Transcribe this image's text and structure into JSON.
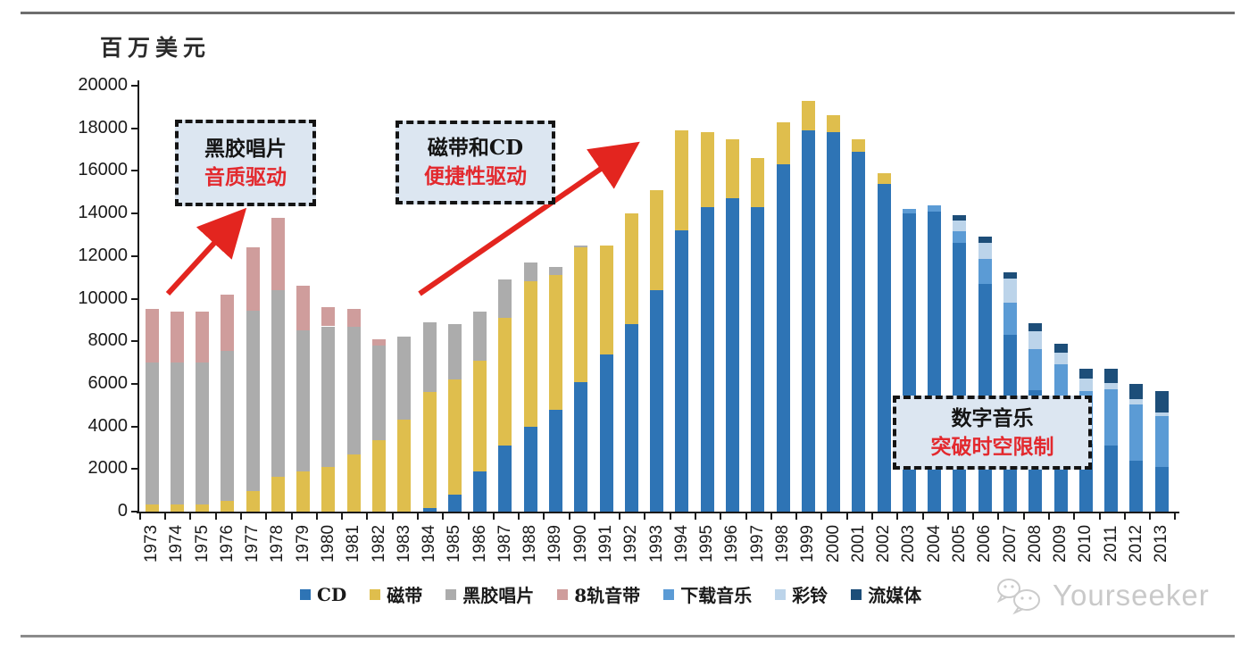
{
  "page": {
    "unit_label": "百万美元",
    "watermark": "Yourseeker"
  },
  "chart_data": {
    "type": "bar",
    "stacked": true,
    "title": "",
    "xlabel": "",
    "ylabel": "百万美元",
    "ylim": [
      0,
      20000
    ],
    "ytick_step": 2000,
    "grid": false,
    "legend_position": "bottom",
    "categories": [
      1973,
      1974,
      1975,
      1976,
      1977,
      1978,
      1979,
      1980,
      1981,
      1982,
      1983,
      1984,
      1985,
      1986,
      1987,
      1988,
      1989,
      1990,
      1991,
      1992,
      1993,
      1994,
      1995,
      1996,
      1997,
      1998,
      1999,
      2000,
      2001,
      2002,
      2003,
      2004,
      2005,
      2006,
      2007,
      2008,
      2009,
      2010,
      2011,
      2012,
      2013
    ],
    "series": [
      {
        "name": "CD",
        "color": "#2E74B5",
        "values": [
          0,
          0,
          0,
          0,
          0,
          0,
          0,
          0,
          0,
          0,
          0,
          150,
          800,
          1900,
          3100,
          4000,
          4800,
          6100,
          7400,
          8800,
          10400,
          13200,
          14300,
          14700,
          14300,
          16300,
          17900,
          17800,
          16900,
          15400,
          14000,
          14100,
          12600,
          10700,
          8300,
          5700,
          4200,
          3200,
          3100,
          2400,
          2100
        ]
      },
      {
        "name": "磁带",
        "color": "#DFBE4D",
        "values": [
          350,
          350,
          350,
          500,
          950,
          1650,
          1900,
          2100,
          2700,
          3350,
          4300,
          5450,
          5400,
          5200,
          6000,
          6800,
          6300,
          6300,
          5100,
          5200,
          4700,
          4700,
          3500,
          2800,
          2300,
          2000,
          1400,
          800,
          600,
          500,
          0,
          0,
          0,
          0,
          0,
          0,
          0,
          0,
          0,
          0,
          0
        ]
      },
      {
        "name": "黑胶唱片",
        "color": "#ACACAC",
        "values": [
          6650,
          6650,
          6650,
          7050,
          8500,
          8750,
          6600,
          6600,
          6000,
          4450,
          3900,
          3300,
          2600,
          2300,
          1800,
          900,
          400,
          100,
          0,
          0,
          0,
          0,
          0,
          0,
          0,
          0,
          0,
          0,
          0,
          0,
          0,
          0,
          0,
          0,
          0,
          0,
          0,
          0,
          0,
          0,
          0
        ]
      },
      {
        "name": "8轨音带",
        "color": "#CF9D9C",
        "values": [
          2500,
          2400,
          2400,
          2650,
          2950,
          3400,
          2100,
          900,
          800,
          300,
          0,
          0,
          0,
          0,
          0,
          0,
          0,
          0,
          0,
          0,
          0,
          0,
          0,
          0,
          0,
          0,
          0,
          0,
          0,
          0,
          0,
          0,
          0,
          0,
          0,
          0,
          0,
          0,
          0,
          0,
          0
        ]
      },
      {
        "name": "下载音乐",
        "color": "#5B9BD5",
        "values": [
          0,
          0,
          0,
          0,
          0,
          0,
          0,
          0,
          0,
          0,
          0,
          0,
          0,
          0,
          0,
          0,
          0,
          0,
          0,
          0,
          0,
          0,
          0,
          0,
          0,
          0,
          0,
          0,
          0,
          0,
          200,
          300,
          550,
          1150,
          1500,
          1950,
          2700,
          2450,
          2650,
          2650,
          2400
        ]
      },
      {
        "name": "彩铃",
        "color": "#BCD4EA",
        "values": [
          0,
          0,
          0,
          0,
          0,
          0,
          0,
          0,
          0,
          0,
          0,
          0,
          0,
          0,
          0,
          0,
          0,
          0,
          0,
          0,
          0,
          0,
          0,
          0,
          0,
          0,
          0,
          0,
          0,
          0,
          0,
          0,
          500,
          750,
          1150,
          800,
          550,
          600,
          300,
          250,
          150
        ]
      },
      {
        "name": "流媒体",
        "color": "#1D4E79",
        "values": [
          0,
          0,
          0,
          0,
          0,
          0,
          0,
          0,
          0,
          0,
          0,
          0,
          0,
          0,
          0,
          0,
          0,
          0,
          0,
          0,
          0,
          0,
          0,
          0,
          0,
          0,
          0,
          0,
          0,
          0,
          0,
          0,
          250,
          300,
          300,
          400,
          420,
          450,
          650,
          700,
          1000
        ]
      }
    ],
    "annotations": [
      {
        "line1": "黑胶唱片",
        "line2": "音质驱动"
      },
      {
        "line1": "磁带和CD",
        "line2": "便捷性驱动"
      },
      {
        "line1": "数字音乐",
        "line2": "突破时空限制"
      }
    ],
    "arrow_color": "#e3251f"
  }
}
